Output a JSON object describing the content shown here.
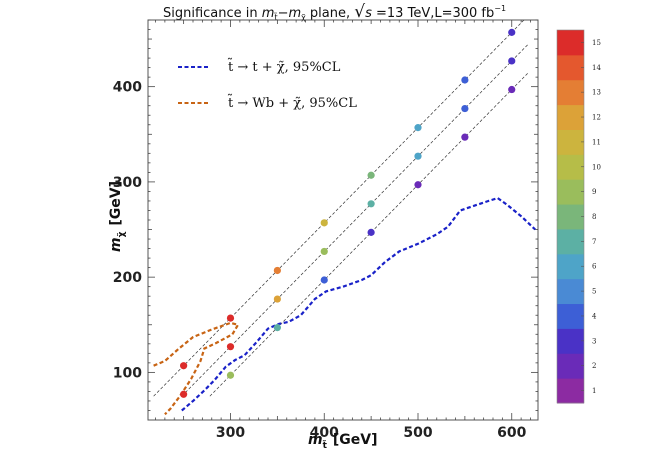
{
  "chart_data": {
    "type": "scatter",
    "title": "Significance in m_t̃–m_χ̃ plane, √s =13 TeV, L=300 fb⁻¹",
    "title_parts": {
      "prefix": "Significance in ",
      "m1": "m",
      "m1_sub": "t̃",
      "dash": "−",
      "m2": "m",
      "m2_sub": "χ̃",
      "mid": " plane, ",
      "sqrt": "√",
      "s": "s",
      "energy": " =13 TeV,L=300 fb",
      "lumi_exp": "−1"
    },
    "xlabel": {
      "main": "m",
      "sub": "t̃",
      "units": "[GeV]"
    },
    "ylabel": {
      "main": "m",
      "sub": "χ̃",
      "units": "[GeV]"
    },
    "xlim": [
      212,
      628
    ],
    "ylim": [
      50,
      470
    ],
    "xticks": [
      300,
      400,
      500,
      600
    ],
    "yticks": [
      100,
      200,
      300,
      400
    ],
    "grid": false,
    "legend_position": "top-left",
    "legend": [
      {
        "label": "t̃ → t + χ̃, 95%CL",
        "color": "#1a22c8"
      },
      {
        "label": "t̃ → Wb + χ̃, 95%CL",
        "color": "#c86414"
      }
    ],
    "colorbar": {
      "min": 0.5,
      "max": 15.5,
      "tick_labels": [
        "1",
        "2",
        "3",
        "4",
        "5",
        "6",
        "7",
        "8",
        "9",
        "10",
        "11",
        "12",
        "13",
        "14",
        "15"
      ],
      "colors": [
        "#8c2ba2",
        "#6a2bb8",
        "#4a32c6",
        "#3d5fd6",
        "#4a8ad4",
        "#4ea4c8",
        "#5cb0a4",
        "#7ab67a",
        "#9abd5c",
        "#b6bd48",
        "#ccb43e",
        "#dca238",
        "#e47e34",
        "#e4582e",
        "#dc2c2a"
      ]
    },
    "diagonal_lines": [
      {
        "offset": 143,
        "x_range": [
          218,
          617
        ]
      },
      {
        "offset": 173,
        "x_range": [
          248,
          617
        ]
      },
      {
        "offset": 203,
        "x_range": [
          278,
          617
        ]
      }
    ],
    "series": [
      {
        "offset": 143,
        "points": [
          {
            "x": 250,
            "y": 107,
            "significance": 15
          },
          {
            "x": 300,
            "y": 157,
            "significance": 15
          },
          {
            "x": 350,
            "y": 207,
            "significance": 13
          },
          {
            "x": 400,
            "y": 257,
            "significance": 11
          },
          {
            "x": 450,
            "y": 307,
            "significance": 8
          },
          {
            "x": 500,
            "y": 357,
            "significance": 6
          },
          {
            "x": 550,
            "y": 407,
            "significance": 4
          },
          {
            "x": 600,
            "y": 457,
            "significance": 3
          }
        ]
      },
      {
        "offset": 173,
        "points": [
          {
            "x": 250,
            "y": 77,
            "significance": 15
          },
          {
            "x": 300,
            "y": 127,
            "significance": 15
          },
          {
            "x": 350,
            "y": 177,
            "significance": 12
          },
          {
            "x": 400,
            "y": 227,
            "significance": 9
          },
          {
            "x": 450,
            "y": 277,
            "significance": 7
          },
          {
            "x": 500,
            "y": 327,
            "significance": 6
          },
          {
            "x": 550,
            "y": 377,
            "significance": 4
          },
          {
            "x": 600,
            "y": 427,
            "significance": 3
          }
        ]
      },
      {
        "offset": 203,
        "points": [
          {
            "x": 300,
            "y": 97,
            "significance": 9
          },
          {
            "x": 350,
            "y": 147,
            "significance": 7
          },
          {
            "x": 400,
            "y": 197,
            "significance": 4
          },
          {
            "x": 450,
            "y": 247,
            "significance": 3
          },
          {
            "x": 500,
            "y": 297,
            "significance": 2
          },
          {
            "x": 550,
            "y": 347,
            "significance": 2
          },
          {
            "x": 600,
            "y": 397,
            "significance": 2
          }
        ]
      }
    ],
    "contours": [
      {
        "name": "t̃ → t + χ̃, 95%CL",
        "color": "#1a22c8",
        "points": [
          [
            248,
            60
          ],
          [
            260,
            70
          ],
          [
            272,
            81
          ],
          [
            283,
            92
          ],
          [
            295,
            106
          ],
          [
            305,
            113
          ],
          [
            315,
            118
          ],
          [
            328,
            132
          ],
          [
            340,
            146
          ],
          [
            352,
            151
          ],
          [
            362,
            153
          ],
          [
            375,
            160
          ],
          [
            390,
            177
          ],
          [
            402,
            185
          ],
          [
            420,
            190
          ],
          [
            440,
            197
          ],
          [
            450,
            202
          ],
          [
            465,
            216
          ],
          [
            480,
            227
          ],
          [
            500,
            235
          ],
          [
            520,
            245
          ],
          [
            532,
            253
          ],
          [
            545,
            270
          ],
          [
            560,
            275
          ],
          [
            575,
            280
          ],
          [
            585,
            283
          ],
          [
            595,
            276
          ],
          [
            610,
            264
          ],
          [
            625,
            250
          ]
        ]
      },
      {
        "name": "t̃ → Wb + χ̃, 95%CL",
        "color": "#c86414",
        "points": [
          [
            218,
            107
          ],
          [
            230,
            112
          ],
          [
            245,
            125
          ],
          [
            260,
            137
          ],
          [
            280,
            145
          ],
          [
            300,
            152
          ],
          [
            308,
            150
          ],
          [
            302,
            140
          ],
          [
            285,
            131
          ],
          [
            272,
            125
          ],
          [
            268,
            112
          ],
          [
            258,
            93
          ],
          [
            246,
            75
          ],
          [
            236,
            62
          ],
          [
            230,
            56
          ]
        ]
      }
    ]
  }
}
